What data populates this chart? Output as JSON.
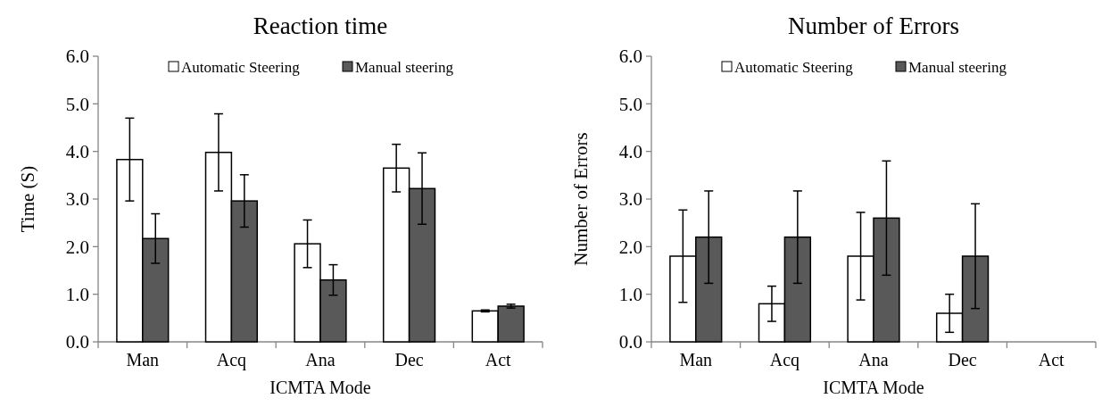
{
  "chart_data": [
    {
      "type": "bar",
      "title": "Reaction time",
      "xlabel": "ICMTA Mode",
      "ylabel": "Time (S)",
      "categories": [
        "Man",
        "Acq",
        "Ana",
        "Dec",
        "Act"
      ],
      "ylim": [
        0,
        6
      ],
      "yticks": [
        {
          "value": 0,
          "label": "0.0"
        },
        {
          "value": 1,
          "label": "1.0"
        },
        {
          "value": 2,
          "label": "2.0"
        },
        {
          "value": 3,
          "label": "3.0"
        },
        {
          "value": 4,
          "label": "4.0"
        },
        {
          "value": 5,
          "label": "5.0"
        },
        {
          "value": 6,
          "label": "6.0"
        }
      ],
      "legend": "top",
      "grid": false,
      "series": [
        {
          "name": "Automatic Steering",
          "color": "#ffffff",
          "values": [
            3.83,
            3.98,
            2.06,
            3.65,
            0.65
          ],
          "errors": [
            0.87,
            0.81,
            0.5,
            0.5,
            0.02
          ]
        },
        {
          "name": "Manual steering",
          "color": "#595959",
          "values": [
            2.17,
            2.96,
            1.3,
            3.22,
            0.75
          ],
          "errors": [
            0.52,
            0.55,
            0.32,
            0.75,
            0.04
          ]
        }
      ]
    },
    {
      "type": "bar",
      "title": "Number of Errors",
      "xlabel": "ICMTA Mode",
      "ylabel": "Number of Errors",
      "categories": [
        "Man",
        "Acq",
        "Ana",
        "Dec",
        "Act"
      ],
      "ylim": [
        0,
        6
      ],
      "yticks": [
        {
          "value": 0,
          "label": "0.0"
        },
        {
          "value": 1,
          "label": "1.0"
        },
        {
          "value": 2,
          "label": "2.0"
        },
        {
          "value": 3,
          "label": "3.0"
        },
        {
          "value": 4,
          "label": "4.0"
        },
        {
          "value": 5,
          "label": "5.0"
        },
        {
          "value": 6,
          "label": "6.0"
        }
      ],
      "legend": "top",
      "grid": false,
      "series": [
        {
          "name": "Automatic Steering",
          "color": "#ffffff",
          "values": [
            1.8,
            0.8,
            1.8,
            0.6,
            0
          ],
          "errors": [
            0.97,
            0.37,
            0.92,
            0.4,
            null
          ]
        },
        {
          "name": "Manual steering",
          "color": "#595959",
          "values": [
            2.2,
            2.2,
            2.6,
            1.8,
            0
          ],
          "errors": [
            0.97,
            0.97,
            1.2,
            1.1,
            null
          ]
        }
      ]
    }
  ]
}
